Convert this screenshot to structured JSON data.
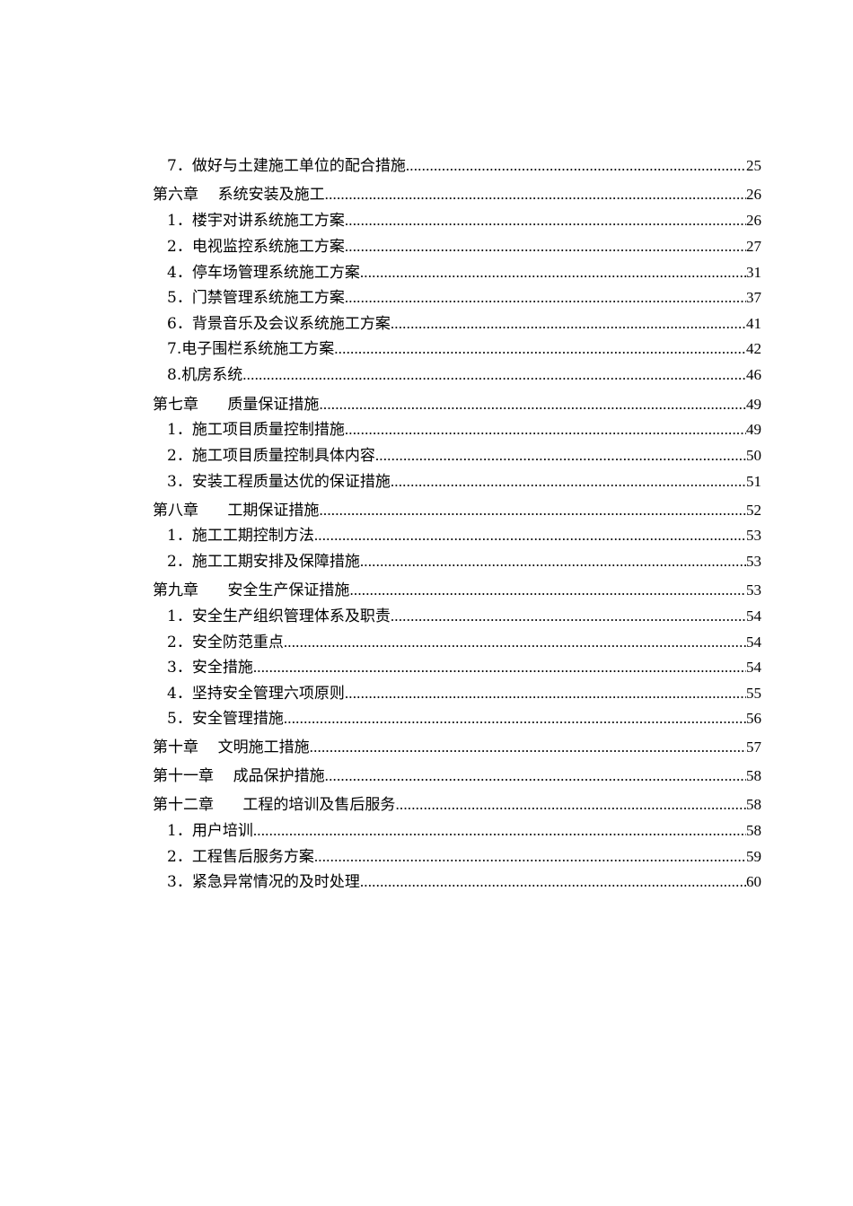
{
  "toc": [
    {
      "level": "sub",
      "text": "7．做好与土建施工单位的配合措施",
      "page": "25"
    },
    {
      "level": "chapter",
      "text": "第六章    系统安装及施工",
      "page": "26"
    },
    {
      "level": "sub",
      "text": "1．楼宇对讲系统施工方案",
      "page": "26"
    },
    {
      "level": "sub",
      "text": "2．电视监控系统施工方案",
      "page": "27"
    },
    {
      "level": "sub",
      "text": "4．停车场管理系统施工方案",
      "page": "31"
    },
    {
      "level": "sub",
      "text": "5．门禁管理系统施工方案",
      "page": "37"
    },
    {
      "level": "sub",
      "text": "6．背景音乐及会议系统施工方案",
      "page": "41"
    },
    {
      "level": "sub",
      "text": "7.电子围栏系统施工方案",
      "page": "42"
    },
    {
      "level": "sub",
      "text": "8.机房系统",
      "page": "46"
    },
    {
      "level": "chapter",
      "text": "第七章      质量保证措施",
      "page": "49"
    },
    {
      "level": "sub",
      "text": "1．施工项目质量控制措施",
      "page": "49"
    },
    {
      "level": "sub",
      "text": "2．施工项目质量控制具体内容",
      "page": "50"
    },
    {
      "level": "sub",
      "text": "3．安装工程质量达优的保证措施",
      "page": "51"
    },
    {
      "level": "chapter",
      "text": "第八章      工期保证措施",
      "page": "52"
    },
    {
      "level": "sub",
      "text": "1．施工工期控制方法",
      "page": "53"
    },
    {
      "level": "sub",
      "text": "2．施工工期安排及保障措施",
      "page": "53"
    },
    {
      "level": "chapter",
      "text": "第九章      安全生产保证措施",
      "page": "53"
    },
    {
      "level": "sub",
      "text": "1．安全生产组织管理体系及职责",
      "page": "54"
    },
    {
      "level": "sub",
      "text": "2．安全防范重点",
      "page": "54"
    },
    {
      "level": "sub",
      "text": "3．安全措施",
      "page": "54"
    },
    {
      "level": "sub",
      "text": "4．坚持安全管理六项原则",
      "page": "55"
    },
    {
      "level": "sub",
      "text": "5．安全管理措施",
      "page": "56"
    },
    {
      "level": "chapter",
      "text": "第十章    文明施工措施",
      "page": "57"
    },
    {
      "level": "chapter",
      "text": "第十一章    成品保护措施",
      "page": "58"
    },
    {
      "level": "chapter",
      "text": "第十二章      工程的培训及售后服务",
      "page": "58"
    },
    {
      "level": "sub",
      "text": "1．用户培训",
      "page": "58"
    },
    {
      "level": "sub",
      "text": "2．工程售后服务方案",
      "page": "59"
    },
    {
      "level": "sub",
      "text": "3．紧急异常情况的及时处理",
      "page": "60"
    }
  ]
}
